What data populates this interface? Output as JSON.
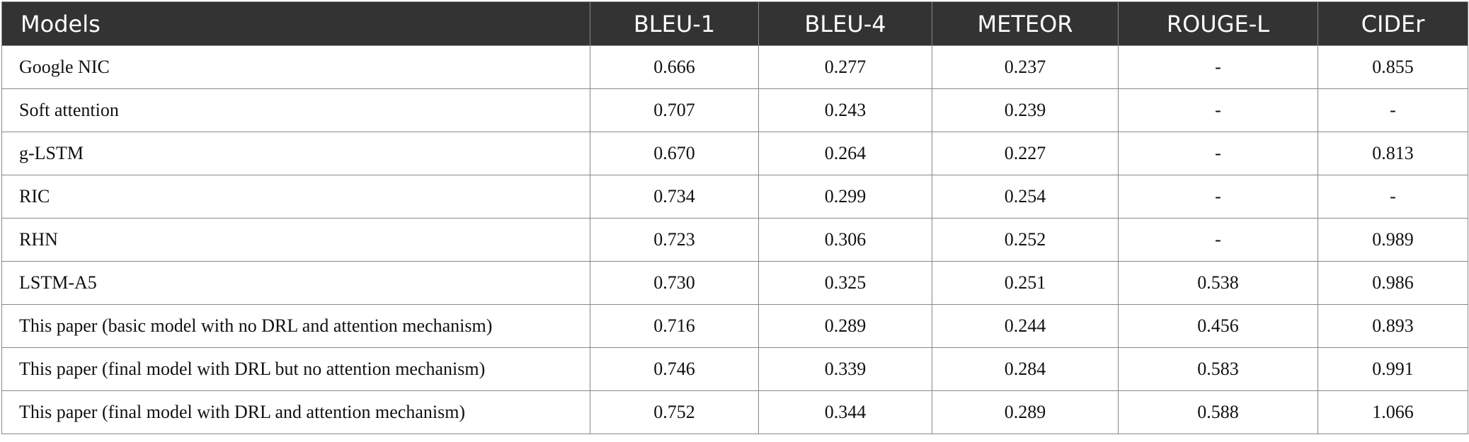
{
  "table": {
    "header": [
      "Models",
      "BLEU-1",
      "BLEU-4",
      "METEOR",
      "ROUGE-L",
      "CIDEr"
    ],
    "rows": [
      [
        "Google NIC",
        "0.666",
        "0.277",
        "0.237",
        "-",
        "0.855"
      ],
      [
        "Soft attention",
        "0.707",
        "0.243",
        "0.239",
        "-",
        "-"
      ],
      [
        "g-LSTM",
        "0.670",
        "0.264",
        "0.227",
        "-",
        "0.813"
      ],
      [
        "RIC",
        "0.734",
        "0.299",
        "0.254",
        "-",
        "-"
      ],
      [
        "RHN",
        "0.723",
        "0.306",
        "0.252",
        "-",
        "0.989"
      ],
      [
        "LSTM-A5",
        "0.730",
        "0.325",
        "0.251",
        "0.538",
        "0.986"
      ],
      [
        "This paper (basic model with no DRL and attention mechanism)",
        "0.716",
        "0.289",
        "0.244",
        "0.456",
        "0.893"
      ],
      [
        "This paper (final model with DRL but no attention mechanism)",
        "0.746",
        "0.339",
        "0.284",
        "0.583",
        "0.991"
      ],
      [
        "This paper (final model with DRL and attention mechanism)",
        "0.752",
        "0.344",
        "0.289",
        "0.588",
        "1.066"
      ]
    ]
  }
}
